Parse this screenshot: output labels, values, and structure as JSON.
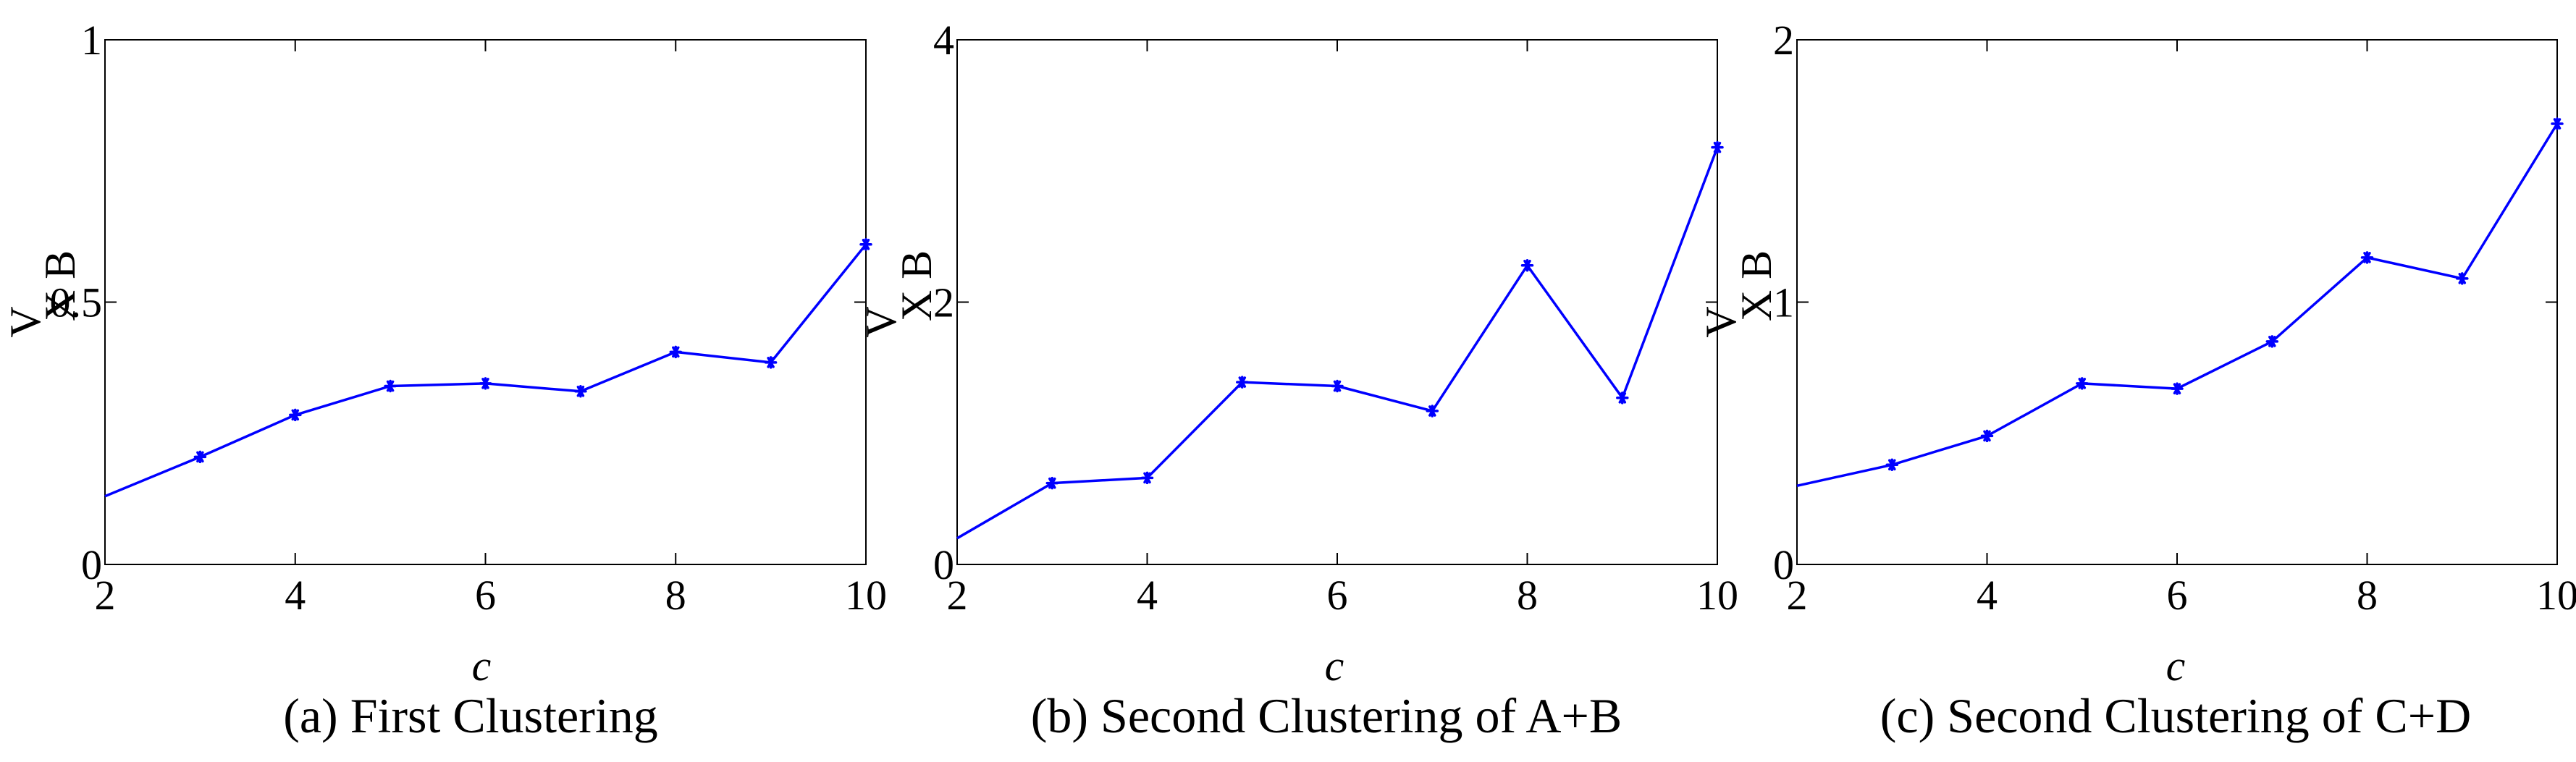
{
  "style": {
    "series_color": "#0000ff",
    "axis_color": "#000000",
    "marker": "asterisk"
  },
  "chart_data": [
    {
      "type": "line",
      "caption": "(a) First Clustering",
      "xlabel": "c",
      "ylabel_main": "V",
      "ylabel_sub": "X B",
      "xlim": [
        2,
        10
      ],
      "ylim": [
        0,
        1
      ],
      "xticks": [
        "2",
        "4",
        "6",
        "8",
        "10"
      ],
      "yticks": [
        "0",
        "0.5",
        "1"
      ],
      "grid": false,
      "x": [
        2,
        3,
        4,
        5,
        6,
        7,
        8,
        9,
        10
      ],
      "y": [
        0.13,
        0.205,
        0.285,
        0.34,
        0.345,
        0.33,
        0.405,
        0.385,
        0.61
      ],
      "markers_from_index": 1
    },
    {
      "type": "line",
      "caption": "(b) Second Clustering of A+B",
      "xlabel": "c",
      "ylabel_main": "V",
      "ylabel_sub": "X B",
      "xlim": [
        2,
        10
      ],
      "ylim": [
        0,
        4
      ],
      "xticks": [
        "2",
        "4",
        "6",
        "8",
        "10"
      ],
      "yticks": [
        "0",
        "2",
        "4"
      ],
      "grid": false,
      "x": [
        2,
        3,
        4,
        5,
        6,
        7,
        8,
        9,
        10
      ],
      "y": [
        0.2,
        0.62,
        0.66,
        1.39,
        1.36,
        1.17,
        2.28,
        1.27,
        3.18
      ],
      "markers_from_index": 1
    },
    {
      "type": "line",
      "caption": "(c) Second Clustering of C+D",
      "xlabel": "c",
      "ylabel_main": "V",
      "ylabel_sub": "X B",
      "xlim": [
        2,
        10
      ],
      "ylim": [
        0,
        2
      ],
      "xticks": [
        "2",
        "4",
        "6",
        "8",
        "10"
      ],
      "yticks": [
        "0",
        "1",
        "2"
      ],
      "grid": false,
      "x": [
        2,
        3,
        4,
        5,
        6,
        7,
        8,
        9,
        10
      ],
      "y": [
        0.3,
        0.38,
        0.49,
        0.69,
        0.67,
        0.85,
        1.17,
        1.09,
        1.68
      ],
      "markers_from_index": 1
    }
  ]
}
